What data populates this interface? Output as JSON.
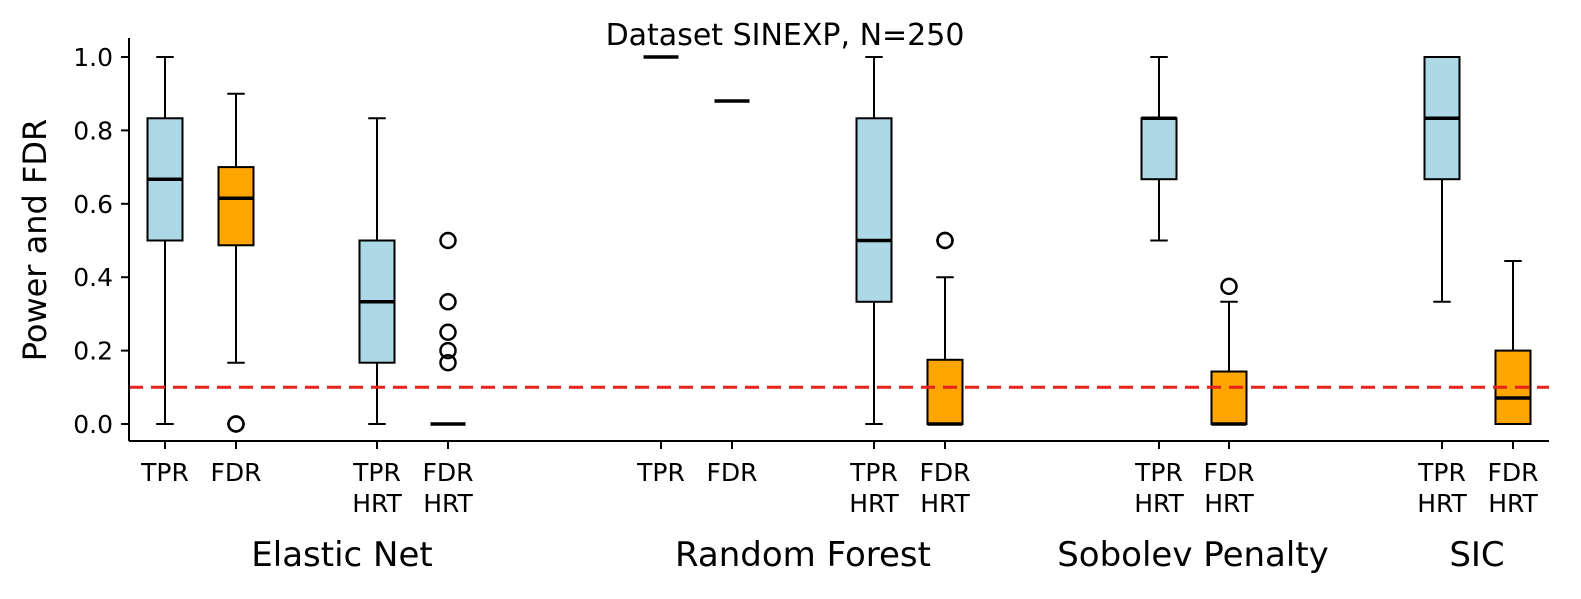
{
  "chart_data": {
    "type": "box",
    "title": "Dataset SINEXP, N=250",
    "ylabel": "Power and FDR",
    "xlabel": "",
    "ylim": [
      -0.045,
      1.05
    ],
    "yticks": [
      "0.0",
      "0.2",
      "0.4",
      "0.6",
      "0.8",
      "1.0"
    ],
    "threshold": {
      "value": 0.1,
      "color": "#e8221c",
      "style": "dashed"
    },
    "colors": {
      "tpr": "#add8e6",
      "fdr": "#ffa500",
      "median": "#000000",
      "whisker": "#000000"
    },
    "groups": [
      {
        "name": "Elastic Net"
      },
      {
        "name": "Random Forest"
      },
      {
        "name": "Sobolev Penalty"
      },
      {
        "name": "SIC"
      }
    ],
    "boxes": [
      {
        "label_lines": [
          "TPR"
        ],
        "group": 0,
        "kind": "tpr",
        "whislo": 0.0,
        "q1": 0.5,
        "median": 0.667,
        "q3": 0.833,
        "whishi": 1.0,
        "fliers": []
      },
      {
        "label_lines": [
          "FDR"
        ],
        "group": 0,
        "kind": "fdr",
        "whislo": 0.167,
        "q1": 0.487,
        "median": 0.615,
        "q3": 0.7,
        "whishi": 0.9,
        "fliers": [
          0.0,
          0.0
        ]
      },
      {
        "label_lines": [
          "TPR",
          "HRT"
        ],
        "group": 0,
        "kind": "tpr",
        "whislo": 0.0,
        "q1": 0.167,
        "median": 0.333,
        "q3": 0.5,
        "whishi": 0.833,
        "fliers": []
      },
      {
        "label_lines": [
          "FDR",
          "HRT"
        ],
        "group": 0,
        "kind": "fdr",
        "whislo": 0.0,
        "q1": 0.0,
        "median": 0.0,
        "q3": 0.0,
        "whishi": 0.0,
        "fliers": [
          0.167,
          0.2,
          0.25,
          0.333,
          0.5
        ]
      },
      {
        "label_lines": [
          "TPR"
        ],
        "group": 1,
        "kind": "tpr",
        "whislo": 1.0,
        "q1": 1.0,
        "median": 1.0,
        "q3": 1.0,
        "whishi": 1.0,
        "fliers": []
      },
      {
        "label_lines": [
          "FDR"
        ],
        "group": 1,
        "kind": "fdr",
        "whislo": 0.88,
        "q1": 0.88,
        "median": 0.88,
        "q3": 0.88,
        "whishi": 0.88,
        "fliers": []
      },
      {
        "label_lines": [
          "TPR",
          "HRT"
        ],
        "group": 1,
        "kind": "tpr",
        "whislo": 0.0,
        "q1": 0.333,
        "median": 0.5,
        "q3": 0.833,
        "whishi": 1.0,
        "fliers": []
      },
      {
        "label_lines": [
          "FDR",
          "HRT"
        ],
        "group": 1,
        "kind": "fdr",
        "whislo": 0.0,
        "q1": 0.0,
        "median": 0.0,
        "q3": 0.175,
        "whishi": 0.4,
        "fliers": [
          0.5,
          0.5
        ]
      },
      {
        "label_lines": [
          "TPR",
          "HRT"
        ],
        "group": 2,
        "kind": "tpr",
        "whislo": 0.5,
        "q1": 0.667,
        "median": 0.833,
        "q3": 0.833,
        "whishi": 1.0,
        "fliers": []
      },
      {
        "label_lines": [
          "FDR",
          "HRT"
        ],
        "group": 2,
        "kind": "fdr",
        "whislo": 0.0,
        "q1": 0.0,
        "median": 0.0,
        "q3": 0.143,
        "whishi": 0.333,
        "fliers": [
          0.375
        ]
      },
      {
        "label_lines": [
          "TPR",
          "HRT"
        ],
        "group": 3,
        "kind": "tpr",
        "whislo": 0.333,
        "q1": 0.667,
        "median": 0.833,
        "q3": 1.0,
        "whishi": 1.0,
        "fliers": []
      },
      {
        "label_lines": [
          "FDR",
          "HRT"
        ],
        "group": 3,
        "kind": "fdr",
        "whislo": 0.0,
        "q1": 0.0,
        "median": 0.071,
        "q3": 0.2,
        "whishi": 0.444,
        "fliers": []
      }
    ]
  }
}
